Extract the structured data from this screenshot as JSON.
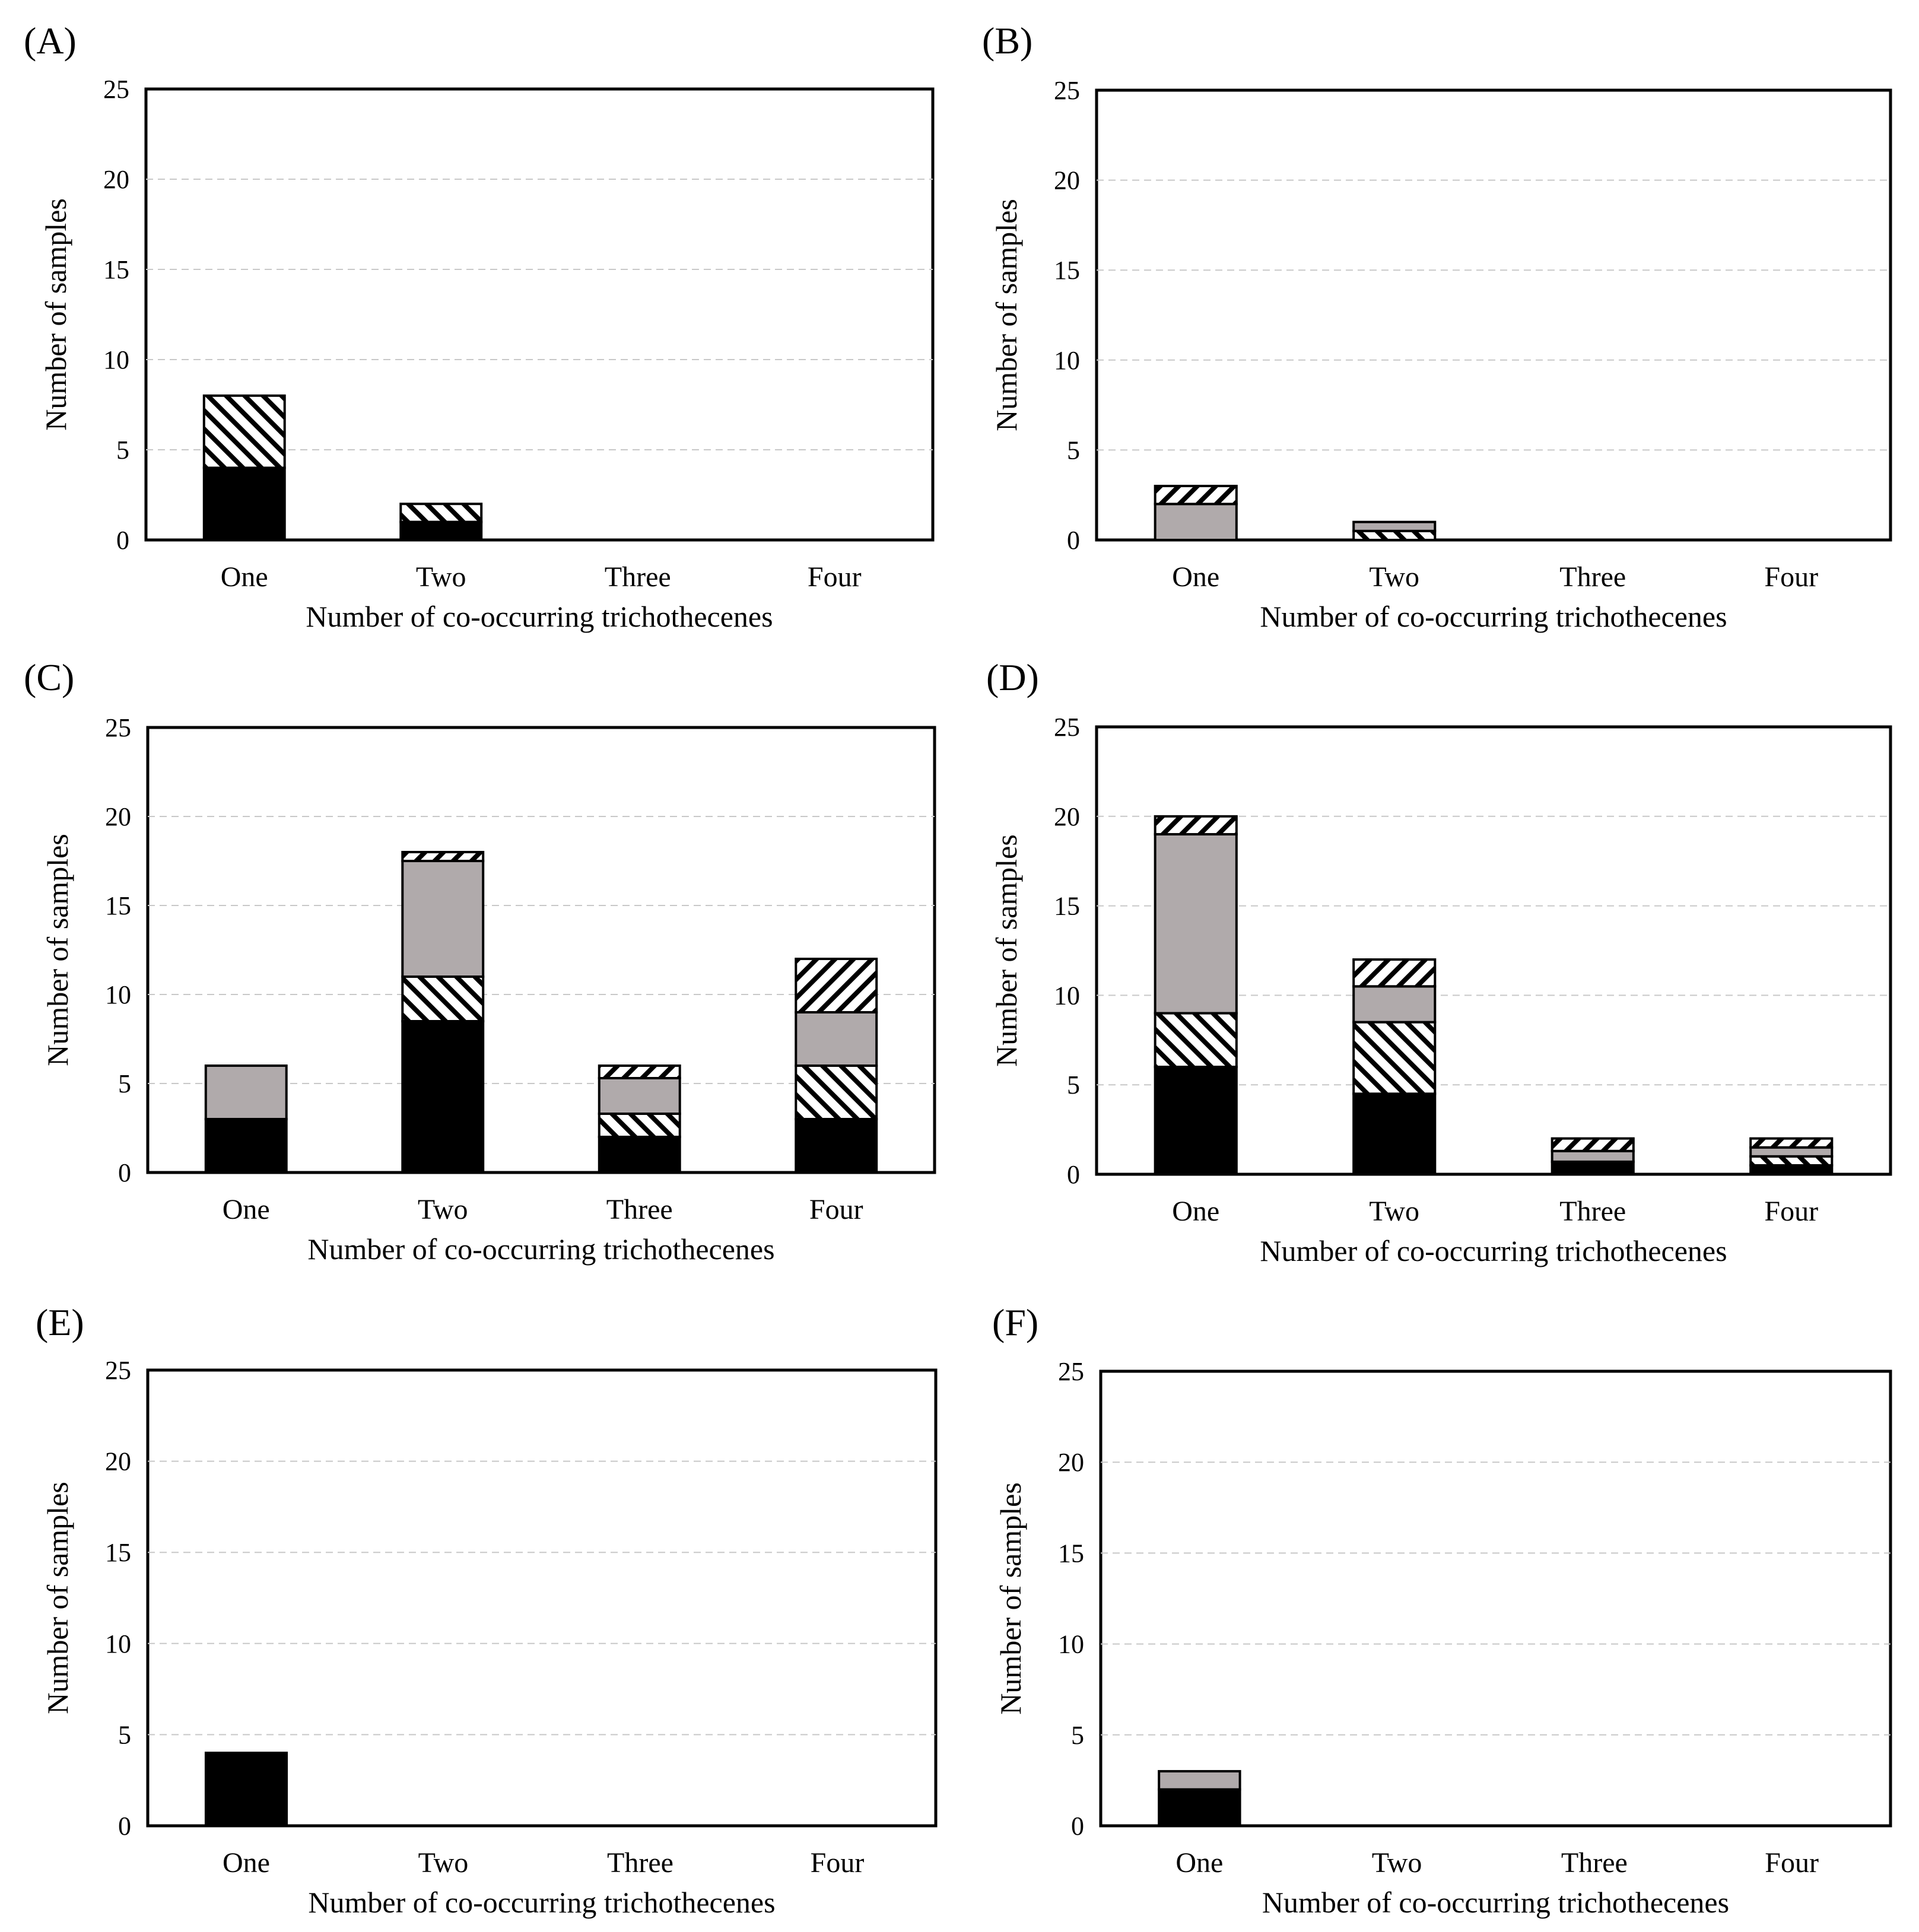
{
  "colors": {
    "solid": "#000000",
    "gray": "#b0aaab",
    "hatch_back": "#000000",
    "hatch_fwd": "#000000",
    "grid": "#c8c8c8",
    "axis": "#000000"
  },
  "chart_data": [
    {
      "panel_label": "(A)",
      "type": "bar",
      "stacked": true,
      "title": "",
      "xlabel": "Number of co-occurring trichothecenes",
      "ylabel": "Number of samples",
      "categories": [
        "One",
        "Two",
        "Three",
        "Four"
      ],
      "ylim": [
        0,
        25
      ],
      "yticks": [
        "0",
        "5",
        "10",
        "15",
        "20",
        "25"
      ],
      "grid": true,
      "series": [
        {
          "name": "black",
          "fill": "solid",
          "values": [
            4,
            1,
            0,
            0
          ]
        },
        {
          "name": "back-hatched",
          "fill": "hatch_back",
          "values": [
            4,
            1,
            0,
            0
          ]
        },
        {
          "name": "gray",
          "fill": "gray",
          "values": [
            0,
            0,
            0,
            0
          ]
        },
        {
          "name": "forward-hatched",
          "fill": "hatch_fwd",
          "values": [
            0,
            0,
            0,
            0
          ]
        }
      ]
    },
    {
      "panel_label": "(B)",
      "type": "bar",
      "stacked": true,
      "title": "",
      "xlabel": "Number of co-occurring trichothecenes",
      "ylabel": "Number of samples",
      "categories": [
        "One",
        "Two",
        "Three",
        "Four"
      ],
      "ylim": [
        0,
        25
      ],
      "yticks": [
        "0",
        "5",
        "10",
        "15",
        "20",
        "25"
      ],
      "grid": true,
      "series": [
        {
          "name": "black",
          "fill": "solid",
          "values": [
            0,
            0,
            0,
            0
          ]
        },
        {
          "name": "back-hatched",
          "fill": "hatch_back",
          "values": [
            0,
            0.5,
            0,
            0
          ]
        },
        {
          "name": "gray",
          "fill": "gray",
          "values": [
            2,
            0.5,
            0,
            0
          ]
        },
        {
          "name": "forward-hatched",
          "fill": "hatch_fwd",
          "values": [
            1,
            0,
            0,
            0
          ]
        }
      ]
    },
    {
      "panel_label": "(C)",
      "type": "bar",
      "stacked": true,
      "title": "",
      "xlabel": "Number of co-occurring trichothecenes",
      "ylabel": "Number of samples",
      "categories": [
        "One",
        "Two",
        "Three",
        "Four"
      ],
      "ylim": [
        0,
        25
      ],
      "yticks": [
        "0",
        "5",
        "10",
        "15",
        "20",
        "25"
      ],
      "grid": true,
      "series": [
        {
          "name": "black",
          "fill": "solid",
          "values": [
            3,
            8.5,
            2,
            3
          ]
        },
        {
          "name": "back-hatched",
          "fill": "hatch_back",
          "values": [
            0,
            2.5,
            1.3,
            3
          ]
        },
        {
          "name": "gray",
          "fill": "gray",
          "values": [
            3,
            6.5,
            2,
            3
          ]
        },
        {
          "name": "forward-hatched",
          "fill": "hatch_fwd",
          "values": [
            0,
            0.5,
            0.7,
            3
          ]
        }
      ]
    },
    {
      "panel_label": "(D)",
      "type": "bar",
      "stacked": true,
      "title": "",
      "xlabel": "Number of co-occurring trichothecenes",
      "ylabel": "Number of samples",
      "categories": [
        "One",
        "Two",
        "Three",
        "Four"
      ],
      "ylim": [
        0,
        25
      ],
      "yticks": [
        "0",
        "5",
        "10",
        "15",
        "20",
        "25"
      ],
      "grid": true,
      "series": [
        {
          "name": "black",
          "fill": "solid",
          "values": [
            6,
            4.5,
            0.7,
            0.5
          ]
        },
        {
          "name": "back-hatched",
          "fill": "hatch_back",
          "values": [
            3,
            4,
            0,
            0.5
          ]
        },
        {
          "name": "gray",
          "fill": "gray",
          "values": [
            10,
            2,
            0.6,
            0.5
          ]
        },
        {
          "name": "forward-hatched",
          "fill": "hatch_fwd",
          "values": [
            1,
            1.5,
            0.7,
            0.5
          ]
        }
      ]
    },
    {
      "panel_label": "(E)",
      "type": "bar",
      "stacked": true,
      "title": "",
      "xlabel": "Number of co-occurring trichothecenes",
      "ylabel": "Number of samples",
      "categories": [
        "One",
        "Two",
        "Three",
        "Four"
      ],
      "ylim": [
        0,
        25
      ],
      "yticks": [
        "0",
        "5",
        "10",
        "15",
        "20",
        "25"
      ],
      "grid": true,
      "series": [
        {
          "name": "black",
          "fill": "solid",
          "values": [
            4,
            0,
            0,
            0
          ]
        },
        {
          "name": "back-hatched",
          "fill": "hatch_back",
          "values": [
            0,
            0,
            0,
            0
          ]
        },
        {
          "name": "gray",
          "fill": "gray",
          "values": [
            0,
            0,
            0,
            0
          ]
        },
        {
          "name": "forward-hatched",
          "fill": "hatch_fwd",
          "values": [
            0,
            0,
            0,
            0
          ]
        }
      ]
    },
    {
      "panel_label": "(F)",
      "type": "bar",
      "stacked": true,
      "title": "",
      "xlabel": "Number of co-occurring trichothecenes",
      "ylabel": "Number of samples",
      "categories": [
        "One",
        "Two",
        "Three",
        "Four"
      ],
      "ylim": [
        0,
        25
      ],
      "yticks": [
        "0",
        "5",
        "10",
        "15",
        "20",
        "25"
      ],
      "grid": true,
      "series": [
        {
          "name": "black",
          "fill": "solid",
          "values": [
            2,
            0,
            0,
            0
          ]
        },
        {
          "name": "back-hatched",
          "fill": "hatch_back",
          "values": [
            0,
            0,
            0,
            0
          ]
        },
        {
          "name": "gray",
          "fill": "gray",
          "values": [
            1,
            0,
            0,
            0
          ]
        },
        {
          "name": "forward-hatched",
          "fill": "hatch_fwd",
          "values": [
            0,
            0,
            0,
            0
          ]
        }
      ]
    }
  ]
}
